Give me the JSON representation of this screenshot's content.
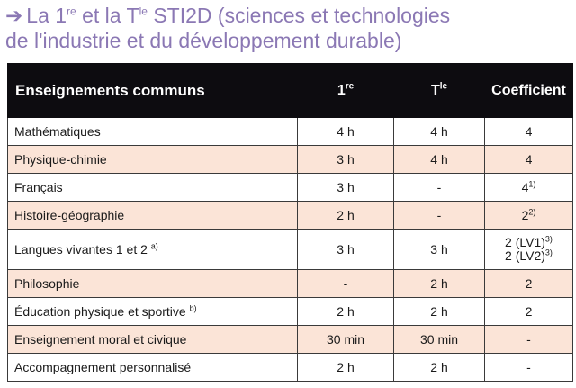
{
  "heading": {
    "arrow": "➔",
    "line1_pre": "La 1",
    "line1_sup1": "re",
    "line1_mid": " et la T",
    "line1_sup2": "le",
    "line1_post": " STI2D (sciences et technologies",
    "line2": "de l'industrie et du développement durable)"
  },
  "table": {
    "headers": {
      "subject": "Enseignements communs",
      "first": "1",
      "first_sup": "re",
      "terminale": "T",
      "terminale_sup": "le",
      "coefficient": "Coefficient"
    },
    "rows": [
      {
        "subject": "Mathématiques",
        "note": "",
        "first": "4 h",
        "terminale": "4 h",
        "coef": "4",
        "coef_note": ""
      },
      {
        "subject": "Physique-chimie",
        "note": "",
        "first": "3 h",
        "terminale": "4 h",
        "coef": "4",
        "coef_note": ""
      },
      {
        "subject": "Français",
        "note": "",
        "first": "3 h",
        "terminale": "-",
        "coef": "4",
        "coef_note": "1)"
      },
      {
        "subject": "Histoire-géographie",
        "note": "",
        "first": "2 h",
        "terminale": "-",
        "coef": "2",
        "coef_note": "2)"
      },
      {
        "subject": "Langues vivantes 1 et 2",
        "note": "a)",
        "first": "3 h",
        "terminale": "3 h",
        "coef": "2 (LV1)",
        "coef_note": "3)",
        "coef2": "2 (LV2)",
        "coef2_note": "3)"
      },
      {
        "subject": "Philosophie",
        "note": "",
        "first": "-",
        "terminale": "2 h",
        "coef": "2",
        "coef_note": ""
      },
      {
        "subject": "Éducation physique et sportive",
        "note": "b)",
        "first": "2 h",
        "terminale": "2 h",
        "coef": "2",
        "coef_note": ""
      },
      {
        "subject": "Enseignement moral et civique",
        "note": "",
        "first": "30 min",
        "terminale": "30 min",
        "coef": "-",
        "coef_note": ""
      },
      {
        "subject": "Accompagnement personnalisé",
        "note": "",
        "first": "2 h",
        "terminale": "2 h",
        "coef": "-",
        "coef_note": ""
      }
    ]
  },
  "colors": {
    "heading": "#8b78b4",
    "header_bg": "#0d0c10",
    "alt_row": "#fbe4d7"
  }
}
